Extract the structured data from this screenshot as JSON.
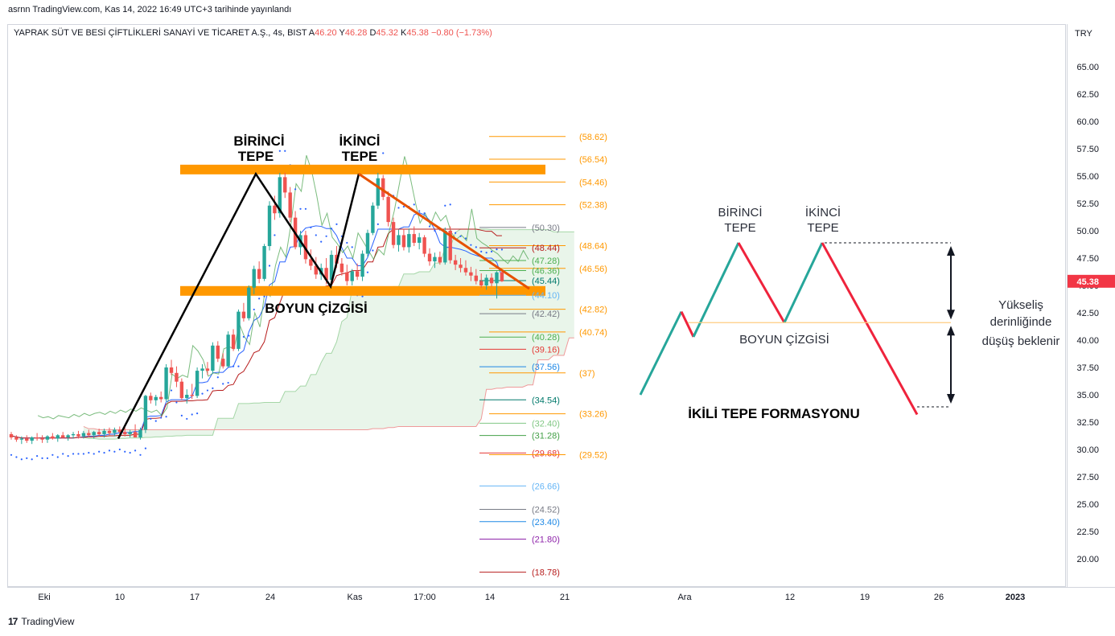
{
  "header": {
    "publisher": "asrnn TradingView.com, Kas 14, 2022 16:49 UTC+3 tarihinde yayınlandı"
  },
  "legend": {
    "symbol": "YAPRAK SÜT VE BESİ ÇİFTLİKLERİ SANAYİ VE TİCARET A.Ş., 4s, BIST",
    "open_label": "A",
    "open": "46.20",
    "high_label": "Y",
    "high": "46.28",
    "low_label": "D",
    "low": "45.32",
    "close_label": "K",
    "close": "45.38",
    "change": "−0.80 (−1.73%)"
  },
  "annotations": {
    "peak1": [
      "BİRİNCİ",
      "TEPE"
    ],
    "peak2": [
      "İKİNCİ",
      "TEPE"
    ],
    "neckline": "BOYUN ÇİZGİSİ",
    "diag_peak1": [
      "BİRİNCİ",
      "TEPE"
    ],
    "diag_peak2": [
      "İKİNCİ",
      "TEPE"
    ],
    "diag_neckline": "BOYUN ÇİZGİSİ",
    "diag_title": "İKİLİ TEPE FORMASYONU",
    "diag_note": [
      "Yükseliş",
      "derinliğinde",
      "düşüş beklenir"
    ]
  },
  "footer": {
    "brand": "TradingView",
    "logo": "17"
  },
  "colors": {
    "up": "#26a69a",
    "down": "#ef5350",
    "orange": "#ff9800",
    "axis_text": "#131722",
    "grid": "#d1d4dc",
    "diag_up": "#26a69a",
    "diag_down": "#ef233c"
  },
  "chart_data": {
    "type": "candlestick",
    "currency": "TRY",
    "price_scale": {
      "ticks": [
        "65.00",
        "62.50",
        "60.00",
        "57.50",
        "55.00",
        "52.50",
        "50.00",
        "47.50",
        "45.00",
        "42.50",
        "40.00",
        "37.50",
        "35.00",
        "32.50",
        "30.00",
        "27.50",
        "25.00",
        "22.50",
        "20.00"
      ],
      "range": [
        17.5,
        67.5
      ]
    },
    "last_price": "45.38",
    "time_axis": [
      "Eki",
      "10",
      "17",
      "24",
      "Kas",
      "17:00",
      "14",
      "21",
      "Ara",
      "12",
      "19",
      "26",
      "2023"
    ],
    "ohlc": [
      [
        31.4,
        31.6,
        30.9,
        31.1
      ],
      [
        31.1,
        31.3,
        30.7,
        30.9
      ],
      [
        30.9,
        31.2,
        30.5,
        31.0
      ],
      [
        31.0,
        31.3,
        30.6,
        30.8
      ],
      [
        30.8,
        31.2,
        30.5,
        31.1
      ],
      [
        31.1,
        31.5,
        30.8,
        31.0
      ],
      [
        31.0,
        31.3,
        30.6,
        30.9
      ],
      [
        30.9,
        31.3,
        30.6,
        31.2
      ],
      [
        31.2,
        31.5,
        30.9,
        31.0
      ],
      [
        31.0,
        31.4,
        30.7,
        31.3
      ],
      [
        31.3,
        31.6,
        31.0,
        31.1
      ],
      [
        31.1,
        31.4,
        30.8,
        31.3
      ],
      [
        31.3,
        31.6,
        31.0,
        31.4
      ],
      [
        31.4,
        31.7,
        31.0,
        31.2
      ],
      [
        31.2,
        31.7,
        31.0,
        31.5
      ],
      [
        31.5,
        31.8,
        31.1,
        31.3
      ],
      [
        31.3,
        31.7,
        31.0,
        31.6
      ],
      [
        31.6,
        31.9,
        31.2,
        31.4
      ],
      [
        31.4,
        31.9,
        31.1,
        31.7
      ],
      [
        31.7,
        32.0,
        31.3,
        31.5
      ],
      [
        31.5,
        32.0,
        31.2,
        31.8
      ],
      [
        31.8,
        32.1,
        31.4,
        31.6
      ],
      [
        31.6,
        32.0,
        31.2,
        31.4
      ],
      [
        31.4,
        31.8,
        31.1,
        31.6
      ],
      [
        31.6,
        32.3,
        31.3,
        31.1
      ],
      [
        31.1,
        32.0,
        30.9,
        31.8
      ],
      [
        31.8,
        35.0,
        31.5,
        34.9
      ],
      [
        34.9,
        35.2,
        34.2,
        34.5
      ],
      [
        34.5,
        35.0,
        34.0,
        34.8
      ],
      [
        34.8,
        35.3,
        34.3,
        34.6
      ],
      [
        34.6,
        37.8,
        34.4,
        37.5
      ],
      [
        37.5,
        38.2,
        36.8,
        37.0
      ],
      [
        37.0,
        37.6,
        35.7,
        36.2
      ],
      [
        36.2,
        36.5,
        34.5,
        34.7
      ],
      [
        34.7,
        35.5,
        34.2,
        35.0
      ],
      [
        35.0,
        36.0,
        34.6,
        34.9
      ],
      [
        34.9,
        37.5,
        34.7,
        37.2
      ],
      [
        37.2,
        37.8,
        36.5,
        37.4
      ],
      [
        37.4,
        38.0,
        36.8,
        37.2
      ],
      [
        37.2,
        39.8,
        37.0,
        39.5
      ],
      [
        39.5,
        39.9,
        38.0,
        38.3
      ],
      [
        38.3,
        38.8,
        37.4,
        37.6
      ],
      [
        37.6,
        40.8,
        37.5,
        40.5
      ],
      [
        40.5,
        41.0,
        39.0,
        39.2
      ],
      [
        39.2,
        42.8,
        39.0,
        42.6
      ],
      [
        42.6,
        43.4,
        41.7,
        42.0
      ],
      [
        42.0,
        45.0,
        41.8,
        44.8
      ],
      [
        44.8,
        46.8,
        44.2,
        46.5
      ],
      [
        46.5,
        47.2,
        45.2,
        45.6
      ],
      [
        45.6,
        48.8,
        45.4,
        48.6
      ],
      [
        48.6,
        52.7,
        48.2,
        52.3
      ],
      [
        52.3,
        53.2,
        51.0,
        51.6
      ],
      [
        51.6,
        55.3,
        51.2,
        54.9
      ],
      [
        54.9,
        55.3,
        53.0,
        53.5
      ],
      [
        53.5,
        54.0,
        50.8,
        51.2
      ],
      [
        51.2,
        51.8,
        48.3,
        48.5
      ],
      [
        48.5,
        50.0,
        47.8,
        49.6
      ],
      [
        49.6,
        50.0,
        47.0,
        47.4
      ],
      [
        47.4,
        48.3,
        46.4,
        46.8
      ],
      [
        46.8,
        47.6,
        45.6,
        46.0
      ],
      [
        46.0,
        47.0,
        45.5,
        46.6
      ],
      [
        46.6,
        47.5,
        45.1,
        45.5
      ],
      [
        45.5,
        48.2,
        45.2,
        47.8
      ],
      [
        47.8,
        48.6,
        46.6,
        47.0
      ],
      [
        47.0,
        47.5,
        45.9,
        46.2
      ],
      [
        46.2,
        46.9,
        45.0,
        45.4
      ],
      [
        45.4,
        46.5,
        45.0,
        46.3
      ],
      [
        46.3,
        47.0,
        45.5,
        45.8
      ],
      [
        45.8,
        48.2,
        45.4,
        47.9
      ],
      [
        47.9,
        50.1,
        47.6,
        49.8
      ],
      [
        49.8,
        52.6,
        49.6,
        52.3
      ],
      [
        52.3,
        55.3,
        52.0,
        54.8
      ],
      [
        54.8,
        55.1,
        52.8,
        53.1
      ],
      [
        53.1,
        53.6,
        50.4,
        50.8
      ],
      [
        50.8,
        51.2,
        48.4,
        48.7
      ],
      [
        48.7,
        50.1,
        48.1,
        49.6
      ],
      [
        49.6,
        50.2,
        48.2,
        48.5
      ],
      [
        48.5,
        50.2,
        48.0,
        49.7
      ],
      [
        49.7,
        50.4,
        48.6,
        48.9
      ],
      [
        48.9,
        49.8,
        48.3,
        49.4
      ],
      [
        49.4,
        49.6,
        47.6,
        47.9
      ],
      [
        47.9,
        48.4,
        46.8,
        47.2
      ],
      [
        47.2,
        48.0,
        46.6,
        47.6
      ],
      [
        47.6,
        48.1,
        46.9,
        47.1
      ],
      [
        47.1,
        50.3,
        46.9,
        50.0
      ],
      [
        50.0,
        50.4,
        47.0,
        47.3
      ],
      [
        47.3,
        47.8,
        46.4,
        46.9
      ],
      [
        46.9,
        47.5,
        46.2,
        46.6
      ],
      [
        46.6,
        47.3,
        45.9,
        46.2
      ],
      [
        46.2,
        46.7,
        45.4,
        45.9
      ],
      [
        45.9,
        46.5,
        45.1,
        45.4
      ],
      [
        45.4,
        46.1,
        44.8,
        45.0
      ],
      [
        45.0,
        46.0,
        44.6,
        45.7
      ],
      [
        45.7,
        46.1,
        44.9,
        45.2
      ],
      [
        45.2,
        46.3,
        43.8,
        46.2
      ],
      [
        46.2,
        46.28,
        45.32,
        45.38
      ]
    ],
    "fibonacci_levels": [
      {
        "value": "58.62",
        "color": "#ff9800"
      },
      {
        "value": "56.54",
        "color": "#ff9800"
      },
      {
        "value": "54.46",
        "color": "#ff9800"
      },
      {
        "value": "52.38",
        "color": "#ff9800"
      },
      {
        "value": "50.30",
        "color": "#787b86"
      },
      {
        "value": "48.64",
        "color": "#ff9800"
      },
      {
        "value": "48.44",
        "color": "#b71c1c"
      },
      {
        "value": "47.28",
        "color": "#4caf50"
      },
      {
        "value": "46.56",
        "color": "#ff9800"
      },
      {
        "value": "46.36",
        "color": "#4caf50"
      },
      {
        "value": "45.44",
        "color": "#00796b"
      },
      {
        "value": "44.10",
        "color": "#64b5f6"
      },
      {
        "value": "42.82",
        "color": "#ff9800"
      },
      {
        "value": "42.42",
        "color": "#787b86"
      },
      {
        "value": "40.74",
        "color": "#ff9800"
      },
      {
        "value": "40.28",
        "color": "#4caf50"
      },
      {
        "value": "39.16",
        "color": "#e53935"
      },
      {
        "value": "37.56",
        "color": "#1e88e5"
      },
      {
        "value": "37",
        "color": "#ff9800"
      },
      {
        "value": "34.54",
        "color": "#00796b"
      },
      {
        "value": "33.26",
        "color": "#ff9800"
      },
      {
        "value": "32.40",
        "color": "#81c784"
      },
      {
        "value": "31.28",
        "color": "#43a047"
      },
      {
        "value": "29.68",
        "color": "#e53935"
      },
      {
        "value": "29.52",
        "color": "#ff9800"
      },
      {
        "value": "26.66",
        "color": "#64b5f6"
      },
      {
        "value": "24.52",
        "color": "#787b86"
      },
      {
        "value": "23.40",
        "color": "#1e88e5"
      },
      {
        "value": "21.80",
        "color": "#8e24aa"
      },
      {
        "value": "18.78",
        "color": "#b71c1c"
      }
    ],
    "resistance_zone": 55.6,
    "neckline_zone": 44.5
  }
}
